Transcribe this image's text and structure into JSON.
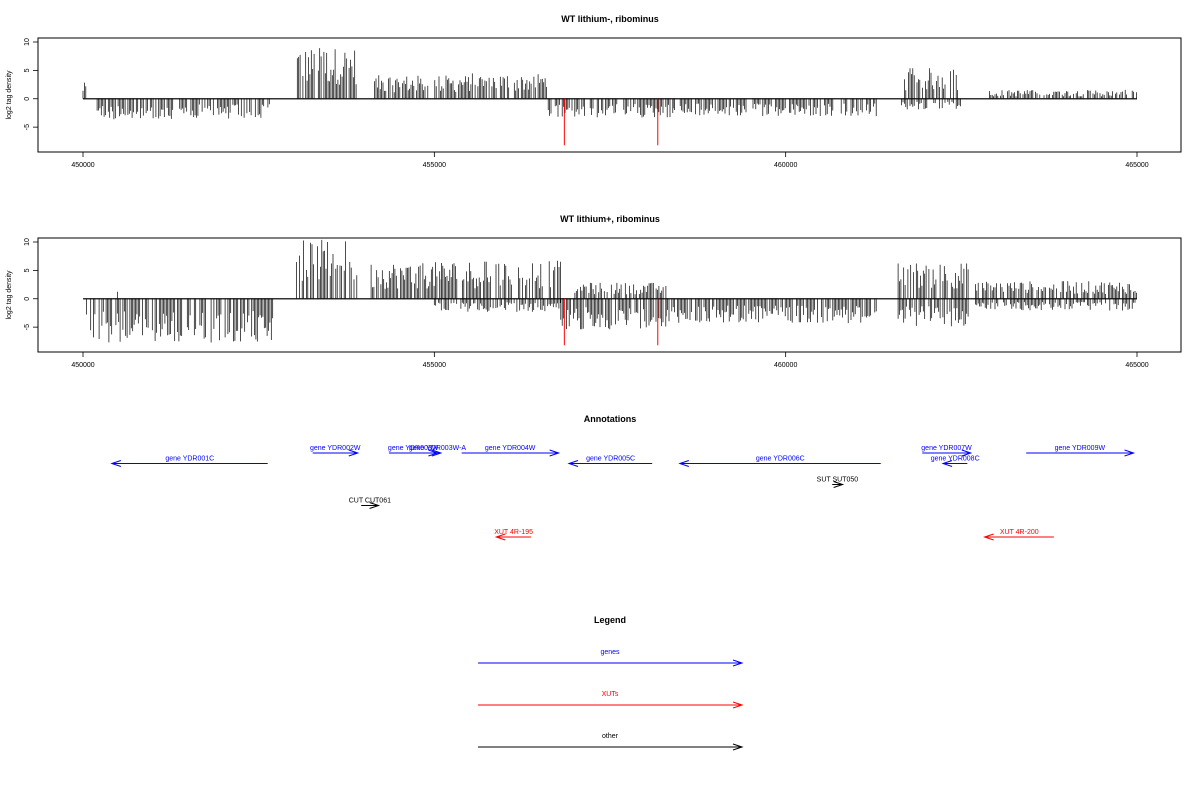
{
  "chart_data": [
    {
      "type": "bar",
      "title": "WT lithium-, ribominus",
      "ylabel": "log2 tag density",
      "xlim": [
        450000,
        465000
      ],
      "ylim": [
        -8.5,
        10
      ],
      "xticks": [
        "450000",
        "455000",
        "460000",
        "465000"
      ],
      "yticks": [
        "10",
        "5",
        "0",
        "-5"
      ],
      "grid": false,
      "colors": {
        "signal": "#000000",
        "highlight": "#ff0000"
      },
      "series": [
        {
          "name": "plus",
          "segments": [
            {
              "start": 450000,
              "end": 450060,
              "level": 2.2
            },
            {
              "start": 453050,
              "end": 453900,
              "level": 7.0
            },
            {
              "start": 454150,
              "end": 455500,
              "level": 3.2
            },
            {
              "start": 455500,
              "end": 456600,
              "level": 3.5
            },
            {
              "start": 461650,
              "end": 462500,
              "level": 4.2
            },
            {
              "start": 462900,
              "end": 465000,
              "level": 1.2
            }
          ]
        },
        {
          "name": "minus",
          "segments": [
            {
              "start": 450200,
              "end": 452700,
              "level": -2.8
            },
            {
              "start": 456600,
              "end": 458400,
              "level": -2.6
            },
            {
              "start": 458400,
              "end": 461300,
              "level": -2.4
            },
            {
              "start": 461650,
              "end": 462500,
              "level": -1.5
            }
          ]
        }
      ],
      "highlights": [
        {
          "x": 456850,
          "value": -8.2
        },
        {
          "x": 458180,
          "value": -8.2
        }
      ]
    },
    {
      "type": "bar",
      "title": "WT lithium+, ribominus",
      "ylabel": "log2 tag density",
      "xlim": [
        450000,
        465000
      ],
      "ylim": [
        -8.5,
        10
      ],
      "xticks": [
        "450000",
        "455000",
        "460000",
        "465000"
      ],
      "yticks": [
        "10",
        "5",
        "0",
        "-5"
      ],
      "grid": false,
      "colors": {
        "signal": "#000000",
        "highlight": "#ff0000"
      },
      "series": [
        {
          "name": "plus",
          "segments": [
            {
              "start": 450450,
              "end": 450500,
              "level": 1.8
            },
            {
              "start": 453000,
              "end": 453900,
              "level": 8.0
            },
            {
              "start": 454100,
              "end": 455100,
              "level": 5.0
            },
            {
              "start": 455100,
              "end": 456800,
              "level": 5.2
            },
            {
              "start": 457000,
              "end": 458300,
              "level": 2.2
            },
            {
              "start": 461600,
              "end": 462600,
              "level": 5.0
            },
            {
              "start": 462700,
              "end": 465000,
              "level": 2.4
            }
          ]
        },
        {
          "name": "minus",
          "segments": [
            {
              "start": 450050,
              "end": 452700,
              "level": -6.0
            },
            {
              "start": 455000,
              "end": 456800,
              "level": -1.8
            },
            {
              "start": 456800,
              "end": 458300,
              "level": -4.2
            },
            {
              "start": 458300,
              "end": 461300,
              "level": -3.3
            },
            {
              "start": 461600,
              "end": 462600,
              "level": -3.8
            },
            {
              "start": 462700,
              "end": 465000,
              "level": -1.6
            }
          ]
        }
      ],
      "highlights": [
        {
          "x": 456850,
          "value": -8.2
        },
        {
          "x": 458180,
          "value": -8.2
        }
      ]
    },
    {
      "type": "annotation-track",
      "title": "Annotations",
      "xlim": [
        450000,
        465000
      ],
      "features": [
        {
          "label": "gene YDR001C",
          "start": 450200,
          "end": 452450,
          "strand": "-",
          "row": 1,
          "color": "#0000ff"
        },
        {
          "label": "gene YDR002W",
          "start": 453100,
          "end": 453750,
          "strand": "+",
          "row": 0,
          "color": "#0000ff"
        },
        {
          "label": "gene YDR003W",
          "start": 454200,
          "end": 454900,
          "strand": "+",
          "row": 0,
          "color": "#0000ff"
        },
        {
          "label": "gene YDR003W-A",
          "start": 454850,
          "end": 454950,
          "strand": "+",
          "row": 0,
          "color": "#0000ff"
        },
        {
          "label": "gene YDR004W",
          "start": 455250,
          "end": 456650,
          "strand": "+",
          "row": 0,
          "color": "#0000ff"
        },
        {
          "label": "gene YDR005C",
          "start": 456800,
          "end": 458000,
          "strand": "-",
          "row": 1,
          "color": "#0000ff"
        },
        {
          "label": "gene YDR006C",
          "start": 458400,
          "end": 461300,
          "strand": "-",
          "row": 1,
          "color": "#0000ff"
        },
        {
          "label": "gene YDR007W",
          "start": 461900,
          "end": 462600,
          "strand": "+",
          "row": 0,
          "color": "#0000ff"
        },
        {
          "label": "gene YDR008C",
          "start": 462200,
          "end": 462550,
          "strand": "-",
          "row": 1,
          "color": "#0000ff"
        },
        {
          "label": "gene YDR009W",
          "start": 463400,
          "end": 464950,
          "strand": "+",
          "row": 0,
          "color": "#0000ff"
        },
        {
          "label": "SUT SUT050",
          "start": 460600,
          "end": 460750,
          "strand": "+",
          "row": 3,
          "color": "#000000"
        },
        {
          "label": "CUT CUT061",
          "start": 453800,
          "end": 454050,
          "strand": "+",
          "row": 5,
          "color": "#000000"
        },
        {
          "label": "XUT 4R-195",
          "start": 455750,
          "end": 456250,
          "strand": "-",
          "row": 8,
          "color": "#ff0000"
        },
        {
          "label": "XUT 4R-200",
          "start": 462800,
          "end": 463800,
          "strand": "-",
          "row": 8,
          "color": "#ff0000"
        }
      ]
    },
    {
      "type": "legend",
      "title": "Legend",
      "items": [
        {
          "label": "genes",
          "color": "#0000ff"
        },
        {
          "label": "XUTs",
          "color": "#ff0000"
        },
        {
          "label": "other",
          "color": "#000000"
        }
      ]
    }
  ]
}
